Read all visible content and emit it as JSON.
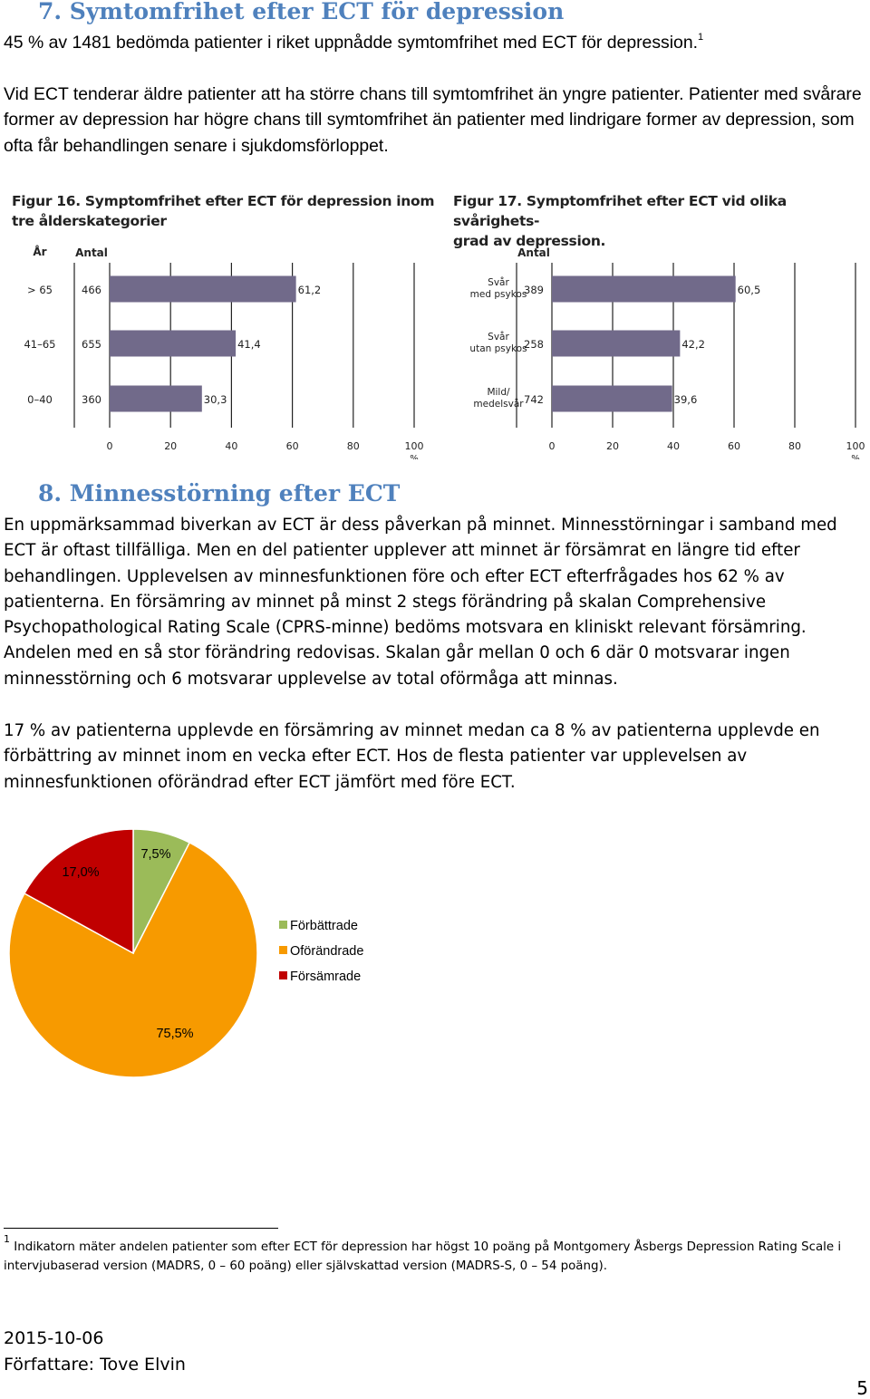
{
  "section7": {
    "heading": "7.  Symtomfrihet efter ECT för depression",
    "para1": "45 % av 1481 bedömda patienter i riket uppnådde symtomfrihet med ECT för depression.",
    "para1_footnote_ref": "1",
    "para2": "Vid ECT tenderar äldre patienter att ha större chans till symtomfrihet än yngre patienter. Patienter med svårare former av depression har högre chans till symtomfrihet än patienter med lindrigare former av depression, som ofta får behandlingen senare i sjukdomsförloppet."
  },
  "fig16": {
    "title_line1": "Figur 16. Symptomfrihet efter ECT för depression inom",
    "title_line2": "tre ålderskategorier",
    "col_header_cat": "År",
    "col_header_count": "Antal",
    "unit_label": "%"
  },
  "fig17": {
    "title_line1": "Figur 17. Symptomfrihet efter ECT vid olika svårighets-",
    "title_line2": "grad av depression.",
    "col_header_count": "Antal",
    "unit_label": "%"
  },
  "chart_data": [
    {
      "type": "bar",
      "orientation": "horizontal",
      "title": "Figur 16. Symptomfrihet efter ECT för depression inom tre ålderskategorier",
      "categories": [
        "> 65",
        "41–65",
        "0–40"
      ],
      "counts": [
        "466",
        "655",
        "360"
      ],
      "values": [
        61.2,
        41.4,
        30.3
      ],
      "value_labels": [
        "61,2",
        "41,4",
        "30,3"
      ],
      "xlim": [
        0,
        100
      ],
      "xticks": [
        "0",
        "20",
        "40",
        "60",
        "80",
        "100"
      ],
      "grid": true,
      "bar_color": "#716a8a"
    },
    {
      "type": "bar",
      "orientation": "horizontal",
      "title": "Figur 17. Symptomfrihet efter ECT vid olika svårighetsgrad av depression.",
      "categories": [
        [
          "Svår",
          "med psykos"
        ],
        [
          "Svår",
          "utan psykos"
        ],
        [
          "Mild/",
          "medelsvår"
        ]
      ],
      "counts": [
        "389",
        "258",
        "742"
      ],
      "values": [
        60.5,
        42.2,
        39.6
      ],
      "value_labels": [
        "60,5",
        "42,2",
        "39,6"
      ],
      "xlim": [
        0,
        100
      ],
      "xticks": [
        "0",
        "20",
        "40",
        "60",
        "80",
        "100"
      ],
      "grid": true,
      "bar_color": "#716a8a"
    },
    {
      "type": "pie",
      "series": [
        {
          "name": "Förbättrade",
          "value": 7.5,
          "label": "7,5%",
          "color": "#9bbb59"
        },
        {
          "name": "Oförändrade",
          "value": 75.5,
          "label": "75,5%",
          "color": "#f79a00"
        },
        {
          "name": "Försämrade",
          "value": 17.0,
          "label": "17,0%",
          "color": "#c00000"
        }
      ],
      "legend_position": "right"
    }
  ],
  "section8": {
    "heading": "8.  Minnesstörning efter ECT",
    "para1": "En uppmärksammad biverkan av ECT är dess påverkan på minnet. Minnesstörningar i samband med ECT är oftast tillfälliga. Men en del patienter upplever att minnet är försämrat en längre tid efter behandlingen. Upplevelsen av minnesfunktionen före och efter ECT efterfrågades hos 62 % av patienterna. En försämring av minnet på minst 2 stegs förändring på skalan Comprehensive Psychopathological Rating Scale (CPRS-minne) bedöms motsvara en kliniskt relevant försämring. Andelen med en så stor förändring redovisas. Skalan går mellan 0 och 6 där 0 motsvarar ingen minnesstörning och 6 motsvarar upplevelse av total oförmåga att minnas.",
    "para2": "17 % av patienterna upplevde en försämring av minnet medan ca 8 % av patienterna upplevde en förbättring av minnet inom en vecka efter ECT. Hos de flesta patienter var upplevelsen av minnesfunktionen oförändrad efter ECT jämfört med före ECT."
  },
  "footnote": {
    "number": "1",
    "text": "Indikatorn mäter andelen patienter som efter ECT för depression har högst 10 poäng på Montgomery Åsbergs Depression Rating Scale i intervjubaserad version (MADRS, 0 – 60 poäng) eller självskattad version (MADRS-S, 0 – 54 poäng)."
  },
  "footer": {
    "date": "2015-10-06",
    "author": "Författare: Tove Elvin",
    "page_number": "5"
  }
}
